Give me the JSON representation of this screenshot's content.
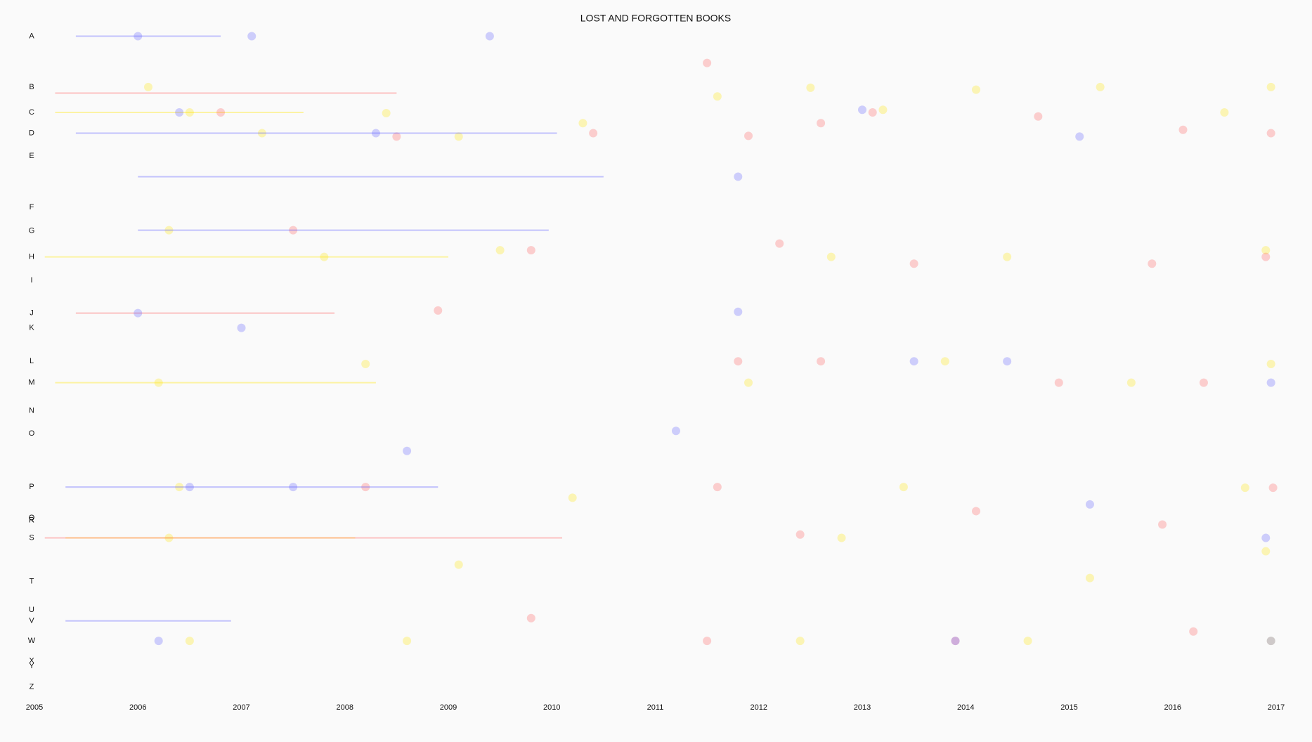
{
  "chart_data": {
    "type": "scatter",
    "title": "LOST AND FORGOTTEN BOOKS",
    "xlim": [
      2005,
      2017
    ],
    "xticks": [
      2005,
      2006,
      2007,
      2008,
      2009,
      2010,
      2011,
      2012,
      2013,
      2014,
      2015,
      2016,
      2017
    ],
    "ylim": [
      0,
      100
    ],
    "y_inverted": true,
    "yticks": [
      {
        "value": 1,
        "label": "A"
      },
      {
        "value": 8.6,
        "label": "B"
      },
      {
        "value": 12.4,
        "label": "C"
      },
      {
        "value": 15.5,
        "label": "D"
      },
      {
        "value": 18.9,
        "label": "E"
      },
      {
        "value": 26.6,
        "label": "F"
      },
      {
        "value": 30.1,
        "label": "G"
      },
      {
        "value": 34,
        "label": "H"
      },
      {
        "value": 37.5,
        "label": "I"
      },
      {
        "value": 42.4,
        "label": "J"
      },
      {
        "value": 44.6,
        "label": "K"
      },
      {
        "value": 49.6,
        "label": "L"
      },
      {
        "value": 52.8,
        "label": "M"
      },
      {
        "value": 57,
        "label": "N"
      },
      {
        "value": 60.4,
        "label": "O"
      },
      {
        "value": 68.4,
        "label": "P"
      },
      {
        "value": 73,
        "label": "Q"
      },
      {
        "value": 73.4,
        "label": "R"
      },
      {
        "value": 76,
        "label": "S"
      },
      {
        "value": 82.5,
        "label": "T"
      },
      {
        "value": 86.8,
        "label": "U"
      },
      {
        "value": 88.4,
        "label": "V"
      },
      {
        "value": 91.4,
        "label": "W"
      },
      {
        "value": 94.4,
        "label": "X"
      },
      {
        "value": 95.2,
        "label": "Y"
      },
      {
        "value": 98.3,
        "label": "Z"
      }
    ],
    "grid": false,
    "series": [
      {
        "color": "#ffe600",
        "x": [
          2006.1,
          2006.5,
          2007.2,
          2008.4,
          2009.1,
          2010.3,
          2011.6,
          2012.5,
          2013.2,
          2014.1,
          2015.3,
          2016.5,
          2016.95,
          2006.3,
          2007.8,
          2009.5,
          2012.7,
          2014.4,
          2016.9,
          2006.2,
          2008.2,
          2011.9,
          2013.8,
          2015.6,
          2016.95,
          2006.4,
          2010.2,
          2013.4,
          2016.7,
          2006.3,
          2009.1,
          2012.8,
          2015.2,
          2016.9,
          2006.5,
          2008.6,
          2012.4,
          2014.6,
          2016.95
        ],
        "values": [
          8.6,
          12.4,
          15.5,
          12.5,
          16,
          14,
          10,
          8.7,
          12,
          9,
          8.6,
          12.4,
          8.6,
          30,
          34,
          33,
          34,
          34,
          33,
          52.8,
          50,
          52.8,
          49.6,
          52.8,
          50,
          68.4,
          70,
          68.4,
          68.5,
          76,
          80,
          76,
          82,
          78,
          91.4,
          91.4,
          91.4,
          91.4,
          91.4
        ],
        "ranges": [
          [
            2005.1,
            2009,
            34
          ],
          [
            2005.2,
            2008.3,
            52.8
          ],
          [
            2005.2,
            2007.6,
            12.4
          ],
          [
            2005.3,
            2008.1,
            76
          ]
        ]
      },
      {
        "color": "#ff5a5a",
        "x": [
          2006.8,
          2008.5,
          2010.4,
          2011.5,
          2011.9,
          2012.6,
          2013.1,
          2014.7,
          2016.1,
          2016.95,
          2007.5,
          2009.8,
          2012.2,
          2013.5,
          2015.8,
          2016.9,
          2008.9,
          2011.8,
          2012.6,
          2014.9,
          2016.3,
          2008.2,
          2011.6,
          2012.4,
          2014.1,
          2015.9,
          2016.97,
          2009.8,
          2011.5,
          2013.9,
          2016.2
        ],
        "values": [
          12.4,
          16,
          15.5,
          5,
          15.9,
          14,
          12.4,
          13,
          15,
          15.5,
          30,
          33,
          32,
          35,
          35,
          34,
          42,
          49.6,
          49.6,
          52.8,
          52.8,
          68.4,
          68.4,
          75.5,
          72,
          74,
          68.5,
          88,
          91.4,
          91.4,
          90
        ],
        "ranges": [
          [
            2005.2,
            2008.5,
            9.5
          ],
          [
            2005.1,
            2010.1,
            76
          ],
          [
            2005.4,
            2007.9,
            42.4
          ]
        ]
      },
      {
        "color": "#5a5aff",
        "x": [
          2006.0,
          2007.1,
          2009.4,
          2006.4,
          2008.3,
          2011.8,
          2013.0,
          2015.1,
          2006.0,
          2007.0,
          2011.8,
          2013.5,
          2014.4,
          2016.95,
          2008.6,
          2006.5,
          2007.5,
          2015.2,
          2016.9,
          2011.2,
          2006.2,
          2013.9,
          2016.95
        ],
        "values": [
          1,
          1,
          1,
          12.4,
          15.5,
          22,
          12,
          16,
          42.4,
          44.6,
          42.2,
          49.6,
          49.6,
          52.8,
          63,
          68.4,
          68.4,
          71,
          76,
          60,
          91.4,
          91.4,
          91.4
        ],
        "ranges": [
          [
            2005.4,
            2010.05,
            15.5
          ],
          [
            2006.0,
            2010.5,
            22
          ],
          [
            2006.0,
            2009.97,
            30
          ],
          [
            2005.3,
            2008.9,
            68.4
          ],
          [
            2005.3,
            2006.9,
            88.4
          ],
          [
            2005.4,
            2006.8,
            1
          ]
        ]
      }
    ]
  }
}
